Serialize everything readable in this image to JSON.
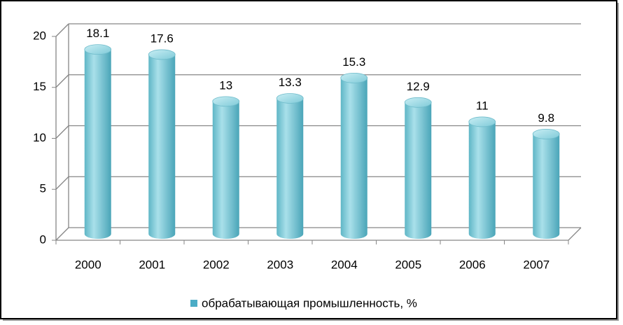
{
  "chart_data": {
    "type": "bar",
    "categories": [
      "2000",
      "2001",
      "2002",
      "2003",
      "2004",
      "2005",
      "2006",
      "2007"
    ],
    "series": [
      {
        "name": "обрабатывающая промышленность, %",
        "color": "#4bacc6",
        "values": [
          18.1,
          17.6,
          13,
          13.3,
          15.3,
          12.9,
          11,
          9.8
        ]
      }
    ],
    "ylim": [
      0,
      20
    ],
    "yticks": [
      0,
      5,
      10,
      15,
      20
    ],
    "grid": true,
    "legend": "bottom"
  }
}
